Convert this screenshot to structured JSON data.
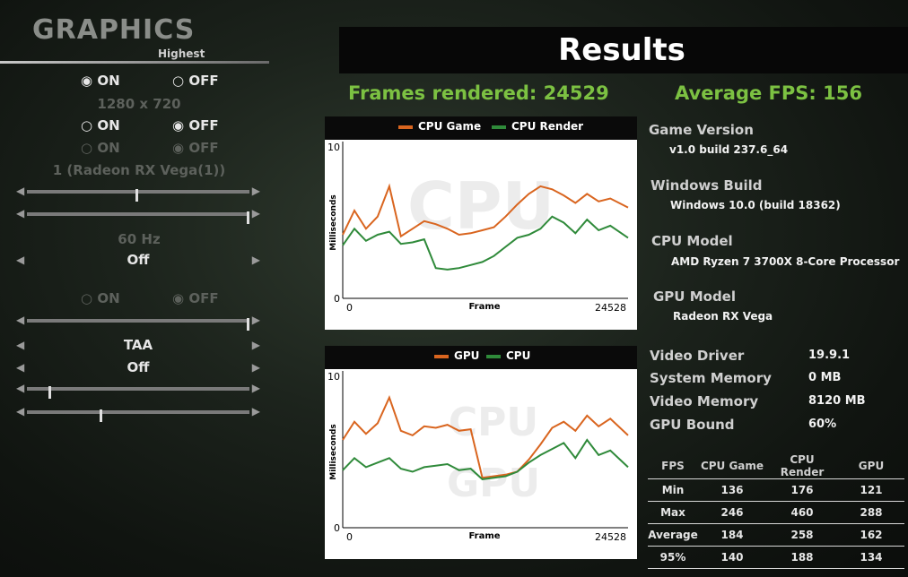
{
  "left_panel": {
    "title": "GRAPHICS",
    "preset": "Highest",
    "radio_on": "ON",
    "radio_off": "OFF",
    "resolution": "1280 x 720",
    "gpu_device": "1 (Radeon RX Vega(1))",
    "refresh_rate": "60 Hz",
    "vsync_value": "Off",
    "aa_value": "TAA",
    "aa2_value": "Off",
    "slider1_level": 0.49,
    "slider2_level": 0.99,
    "slider3_level": 0.99,
    "slider4_level": 0.1,
    "slider5_level": 0.33
  },
  "results": {
    "title": "Results",
    "frames_rendered": "Frames rendered: 24529",
    "average_fps": "Average FPS: 156"
  },
  "info": {
    "game_version_label": "Game Version",
    "game_version": "v1.0 build 237.6_64",
    "windows_build_label": "Windows Build",
    "windows_build": "Windows 10.0 (build 18362)",
    "cpu_model_label": "CPU Model",
    "cpu_model": "AMD Ryzen 7 3700X 8-Core Processor",
    "gpu_model_label": "GPU Model",
    "gpu_model": "Radeon RX Vega",
    "video_driver_label": "Video Driver",
    "video_driver": "19.9.1",
    "system_memory_label": "System Memory",
    "system_memory": "0 MB",
    "video_memory_label": "Video Memory",
    "video_memory": "8120 MB",
    "gpu_bound_label": "GPU Bound",
    "gpu_bound": "60%"
  },
  "fps_table": {
    "headers": [
      "FPS",
      "CPU Game",
      "CPU Render",
      "GPU"
    ],
    "rows": [
      [
        "Min",
        "136",
        "176",
        "121"
      ],
      [
        "Max",
        "246",
        "460",
        "288"
      ],
      [
        "Average",
        "184",
        "258",
        "162"
      ],
      [
        "95%",
        "140",
        "188",
        "134"
      ]
    ]
  },
  "colors": {
    "orange": "#d9651f",
    "green": "#2f8a3a",
    "accent_green": "#7cc142"
  },
  "chart_data": [
    {
      "type": "line",
      "xlabel": "Frame",
      "ylabel": "Milliseconds",
      "xlim": [
        0,
        24528
      ],
      "ylim": [
        0,
        10
      ],
      "y_ticks": [
        "0",
        "10"
      ],
      "x_ticks": [
        "0",
        "24528"
      ],
      "watermark": "CPU",
      "x": [
        0,
        1000,
        2000,
        3000,
        4000,
        5000,
        6000,
        7000,
        8000,
        9000,
        10000,
        11000,
        12000,
        13000,
        14000,
        15000,
        16000,
        17000,
        18000,
        19000,
        20000,
        21000,
        22000,
        23000,
        24528
      ],
      "series": [
        {
          "name": "CPU Game",
          "color": "#d9651f",
          "values": [
            4.2,
            5.8,
            4.6,
            5.4,
            7.4,
            4.1,
            4.6,
            5.1,
            4.9,
            4.6,
            4.2,
            4.3,
            4.5,
            4.7,
            5.4,
            6.2,
            6.9,
            7.4,
            7.2,
            6.8,
            6.3,
            6.9,
            6.4,
            6.6,
            6.0
          ]
        },
        {
          "name": "CPU Render",
          "color": "#2f8a3a",
          "values": [
            3.5,
            4.6,
            3.8,
            4.2,
            4.4,
            3.6,
            3.7,
            3.9,
            2.0,
            1.9,
            2.0,
            2.2,
            2.4,
            2.8,
            3.4,
            4.0,
            4.2,
            4.6,
            5.4,
            5.0,
            4.3,
            5.2,
            4.5,
            4.8,
            4.0
          ]
        }
      ]
    },
    {
      "type": "line",
      "xlabel": "Frame",
      "ylabel": "Milliseconds",
      "xlim": [
        0,
        24528
      ],
      "ylim": [
        0,
        10
      ],
      "y_ticks": [
        "0",
        "10"
      ],
      "x_ticks": [
        "0",
        "24528"
      ],
      "watermark": [
        "CPU",
        "GPU"
      ],
      "x": [
        0,
        1000,
        2000,
        3000,
        4000,
        5000,
        6000,
        7000,
        8000,
        9000,
        10000,
        11000,
        12000,
        13000,
        14000,
        15000,
        16000,
        17000,
        18000,
        19000,
        20000,
        21000,
        22000,
        23000,
        24528
      ],
      "series": [
        {
          "name": "GPU",
          "color": "#d9651f",
          "values": [
            5.8,
            7.0,
            6.2,
            6.9,
            8.6,
            6.4,
            6.1,
            6.7,
            6.6,
            6.8,
            6.4,
            6.5,
            3.3,
            3.4,
            3.5,
            3.7,
            4.5,
            5.5,
            6.6,
            7.0,
            6.4,
            7.4,
            6.7,
            7.2,
            6.1
          ]
        },
        {
          "name": "CPU",
          "color": "#2f8a3a",
          "values": [
            3.8,
            4.6,
            4.0,
            4.3,
            4.6,
            3.9,
            3.7,
            4.0,
            4.1,
            4.2,
            3.8,
            3.9,
            3.2,
            3.3,
            3.4,
            3.7,
            4.3,
            4.8,
            5.2,
            5.6,
            4.6,
            5.8,
            4.8,
            5.1,
            4.0
          ]
        }
      ]
    }
  ]
}
